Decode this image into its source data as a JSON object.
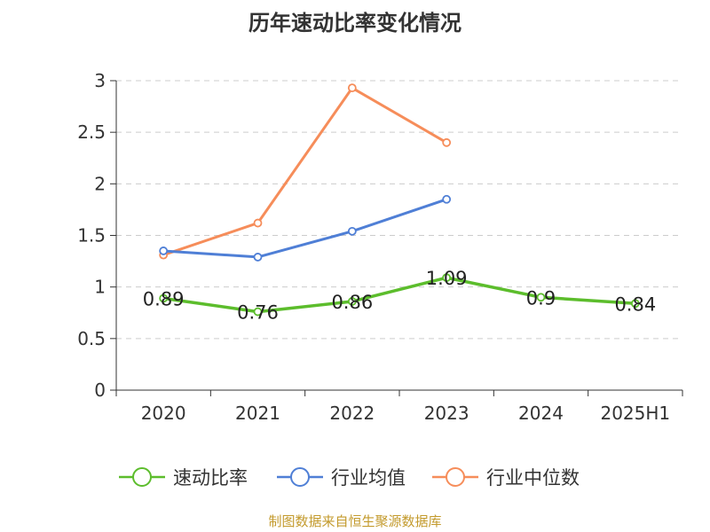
{
  "title": "历年速动比率变化情况",
  "source": "制图数据来自恒生聚源数据库",
  "colors": {
    "series_0": "#5cbd2c",
    "series_1": "#4f7fd6",
    "series_2": "#f68d5a",
    "grid": "#cccccc",
    "axis": "#333333",
    "source_text": "#c39a2c"
  },
  "chart_data": {
    "type": "line",
    "title": "历年速动比率变化情况",
    "categories": [
      "2020",
      "2021",
      "2022",
      "2023",
      "2024",
      "2025H1"
    ],
    "ylim": [
      0,
      3
    ],
    "yticks": [
      "0",
      "0.5",
      "1",
      "1.5",
      "2",
      "2.5",
      "3"
    ],
    "ytick_values": [
      0,
      0.5,
      1,
      1.5,
      2,
      2.5,
      3
    ],
    "grid": true,
    "legend_position": "bottom",
    "series": [
      {
        "name": "速动比率",
        "values": [
          0.89,
          0.76,
          0.86,
          1.09,
          0.9,
          0.84
        ],
        "labels": [
          "0.89",
          "0.76",
          "0.86",
          "1.09",
          "0.9",
          "0.84"
        ]
      },
      {
        "name": "行业均值",
        "values": [
          1.35,
          1.29,
          1.54,
          1.85,
          null,
          null
        ]
      },
      {
        "name": "行业中位数",
        "values": [
          1.31,
          1.62,
          2.93,
          2.4,
          null,
          null
        ]
      }
    ]
  }
}
